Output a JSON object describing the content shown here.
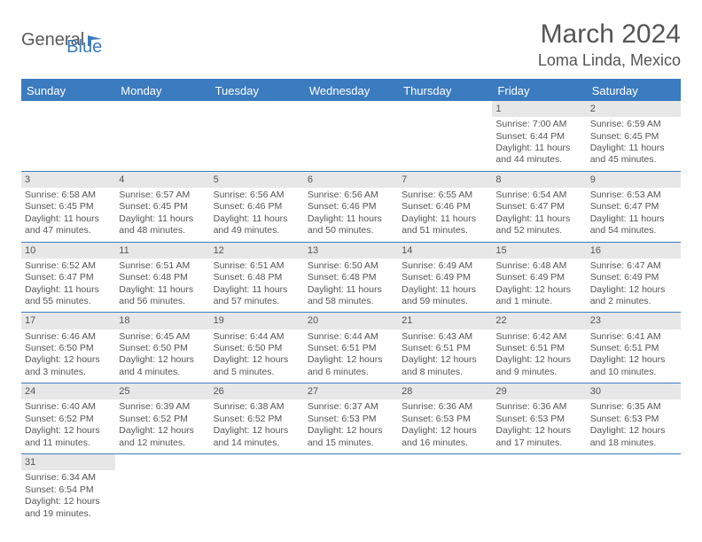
{
  "logo": {
    "general": "General",
    "blue": "Blue"
  },
  "title": "March 2024",
  "location": "Loma Linda, Mexico",
  "colors": {
    "header_bg": "#3b7bbf",
    "header_text": "#ffffff",
    "daynum_bg": "#e7e7e7",
    "border": "#3b7bbf",
    "body_text": "#555555",
    "page_bg": "#ffffff"
  },
  "daysOfWeek": [
    "Sunday",
    "Monday",
    "Tuesday",
    "Wednesday",
    "Thursday",
    "Friday",
    "Saturday"
  ],
  "weeks": [
    [
      {
        "empty": true
      },
      {
        "empty": true
      },
      {
        "empty": true
      },
      {
        "empty": true
      },
      {
        "empty": true
      },
      {
        "day": "1",
        "sunrise": "Sunrise: 7:00 AM",
        "sunset": "Sunset: 6:44 PM",
        "daylight1": "Daylight: 11 hours",
        "daylight2": "and 44 minutes."
      },
      {
        "day": "2",
        "sunrise": "Sunrise: 6:59 AM",
        "sunset": "Sunset: 6:45 PM",
        "daylight1": "Daylight: 11 hours",
        "daylight2": "and 45 minutes."
      }
    ],
    [
      {
        "day": "3",
        "sunrise": "Sunrise: 6:58 AM",
        "sunset": "Sunset: 6:45 PM",
        "daylight1": "Daylight: 11 hours",
        "daylight2": "and 47 minutes."
      },
      {
        "day": "4",
        "sunrise": "Sunrise: 6:57 AM",
        "sunset": "Sunset: 6:45 PM",
        "daylight1": "Daylight: 11 hours",
        "daylight2": "and 48 minutes."
      },
      {
        "day": "5",
        "sunrise": "Sunrise: 6:56 AM",
        "sunset": "Sunset: 6:46 PM",
        "daylight1": "Daylight: 11 hours",
        "daylight2": "and 49 minutes."
      },
      {
        "day": "6",
        "sunrise": "Sunrise: 6:56 AM",
        "sunset": "Sunset: 6:46 PM",
        "daylight1": "Daylight: 11 hours",
        "daylight2": "and 50 minutes."
      },
      {
        "day": "7",
        "sunrise": "Sunrise: 6:55 AM",
        "sunset": "Sunset: 6:46 PM",
        "daylight1": "Daylight: 11 hours",
        "daylight2": "and 51 minutes."
      },
      {
        "day": "8",
        "sunrise": "Sunrise: 6:54 AM",
        "sunset": "Sunset: 6:47 PM",
        "daylight1": "Daylight: 11 hours",
        "daylight2": "and 52 minutes."
      },
      {
        "day": "9",
        "sunrise": "Sunrise: 6:53 AM",
        "sunset": "Sunset: 6:47 PM",
        "daylight1": "Daylight: 11 hours",
        "daylight2": "and 54 minutes."
      }
    ],
    [
      {
        "day": "10",
        "sunrise": "Sunrise: 6:52 AM",
        "sunset": "Sunset: 6:47 PM",
        "daylight1": "Daylight: 11 hours",
        "daylight2": "and 55 minutes."
      },
      {
        "day": "11",
        "sunrise": "Sunrise: 6:51 AM",
        "sunset": "Sunset: 6:48 PM",
        "daylight1": "Daylight: 11 hours",
        "daylight2": "and 56 minutes."
      },
      {
        "day": "12",
        "sunrise": "Sunrise: 6:51 AM",
        "sunset": "Sunset: 6:48 PM",
        "daylight1": "Daylight: 11 hours",
        "daylight2": "and 57 minutes."
      },
      {
        "day": "13",
        "sunrise": "Sunrise: 6:50 AM",
        "sunset": "Sunset: 6:48 PM",
        "daylight1": "Daylight: 11 hours",
        "daylight2": "and 58 minutes."
      },
      {
        "day": "14",
        "sunrise": "Sunrise: 6:49 AM",
        "sunset": "Sunset: 6:49 PM",
        "daylight1": "Daylight: 11 hours",
        "daylight2": "and 59 minutes."
      },
      {
        "day": "15",
        "sunrise": "Sunrise: 6:48 AM",
        "sunset": "Sunset: 6:49 PM",
        "daylight1": "Daylight: 12 hours",
        "daylight2": "and 1 minute."
      },
      {
        "day": "16",
        "sunrise": "Sunrise: 6:47 AM",
        "sunset": "Sunset: 6:49 PM",
        "daylight1": "Daylight: 12 hours",
        "daylight2": "and 2 minutes."
      }
    ],
    [
      {
        "day": "17",
        "sunrise": "Sunrise: 6:46 AM",
        "sunset": "Sunset: 6:50 PM",
        "daylight1": "Daylight: 12 hours",
        "daylight2": "and 3 minutes."
      },
      {
        "day": "18",
        "sunrise": "Sunrise: 6:45 AM",
        "sunset": "Sunset: 6:50 PM",
        "daylight1": "Daylight: 12 hours",
        "daylight2": "and 4 minutes."
      },
      {
        "day": "19",
        "sunrise": "Sunrise: 6:44 AM",
        "sunset": "Sunset: 6:50 PM",
        "daylight1": "Daylight: 12 hours",
        "daylight2": "and 5 minutes."
      },
      {
        "day": "20",
        "sunrise": "Sunrise: 6:44 AM",
        "sunset": "Sunset: 6:51 PM",
        "daylight1": "Daylight: 12 hours",
        "daylight2": "and 6 minutes."
      },
      {
        "day": "21",
        "sunrise": "Sunrise: 6:43 AM",
        "sunset": "Sunset: 6:51 PM",
        "daylight1": "Daylight: 12 hours",
        "daylight2": "and 8 minutes."
      },
      {
        "day": "22",
        "sunrise": "Sunrise: 6:42 AM",
        "sunset": "Sunset: 6:51 PM",
        "daylight1": "Daylight: 12 hours",
        "daylight2": "and 9 minutes."
      },
      {
        "day": "23",
        "sunrise": "Sunrise: 6:41 AM",
        "sunset": "Sunset: 6:51 PM",
        "daylight1": "Daylight: 12 hours",
        "daylight2": "and 10 minutes."
      }
    ],
    [
      {
        "day": "24",
        "sunrise": "Sunrise: 6:40 AM",
        "sunset": "Sunset: 6:52 PM",
        "daylight1": "Daylight: 12 hours",
        "daylight2": "and 11 minutes."
      },
      {
        "day": "25",
        "sunrise": "Sunrise: 6:39 AM",
        "sunset": "Sunset: 6:52 PM",
        "daylight1": "Daylight: 12 hours",
        "daylight2": "and 12 minutes."
      },
      {
        "day": "26",
        "sunrise": "Sunrise: 6:38 AM",
        "sunset": "Sunset: 6:52 PM",
        "daylight1": "Daylight: 12 hours",
        "daylight2": "and 14 minutes."
      },
      {
        "day": "27",
        "sunrise": "Sunrise: 6:37 AM",
        "sunset": "Sunset: 6:53 PM",
        "daylight1": "Daylight: 12 hours",
        "daylight2": "and 15 minutes."
      },
      {
        "day": "28",
        "sunrise": "Sunrise: 6:36 AM",
        "sunset": "Sunset: 6:53 PM",
        "daylight1": "Daylight: 12 hours",
        "daylight2": "and 16 minutes."
      },
      {
        "day": "29",
        "sunrise": "Sunrise: 6:36 AM",
        "sunset": "Sunset: 6:53 PM",
        "daylight1": "Daylight: 12 hours",
        "daylight2": "and 17 minutes."
      },
      {
        "day": "30",
        "sunrise": "Sunrise: 6:35 AM",
        "sunset": "Sunset: 6:53 PM",
        "daylight1": "Daylight: 12 hours",
        "daylight2": "and 18 minutes."
      }
    ],
    [
      {
        "day": "31",
        "sunrise": "Sunrise: 6:34 AM",
        "sunset": "Sunset: 6:54 PM",
        "daylight1": "Daylight: 12 hours",
        "daylight2": "and 19 minutes."
      },
      {
        "empty": true
      },
      {
        "empty": true
      },
      {
        "empty": true
      },
      {
        "empty": true
      },
      {
        "empty": true
      },
      {
        "empty": true
      }
    ]
  ]
}
